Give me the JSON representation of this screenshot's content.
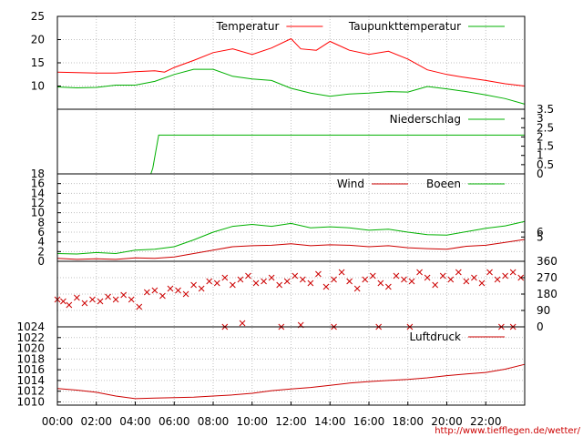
{
  "source_url": "http://www.tiefflegen.de/wetter/",
  "x_axis": {
    "ticks": [
      "00:00",
      "02:00",
      "04:00",
      "06:00",
      "08:00",
      "10:00",
      "12:00",
      "14:00",
      "16:00",
      "18:00",
      "20:00",
      "22:00"
    ],
    "range_hours": [
      0,
      24
    ]
  },
  "colors": {
    "red": "#ff0000",
    "dark_red": "#cc0000",
    "green": "#00b000",
    "grid": "#c0c0c0",
    "frame": "#000000"
  },
  "chart_data": [
    {
      "type": "line",
      "panel": "temperature",
      "x_unit": "hours",
      "ylim": [
        5,
        25
      ],
      "y_ticks": [
        "25",
        "20",
        "15",
        "10"
      ],
      "grid": true,
      "legend_placement": "top-right",
      "series": [
        {
          "name": "Temperatur",
          "color": "#ff0000",
          "points": [
            [
              0,
              13
            ],
            [
              1,
              12.9
            ],
            [
              2,
              12.8
            ],
            [
              3,
              12.8
            ],
            [
              4,
              13.1
            ],
            [
              5,
              13.3
            ],
            [
              5.5,
              13
            ],
            [
              6,
              14
            ],
            [
              7,
              15.5
            ],
            [
              8,
              17.2
            ],
            [
              9,
              18
            ],
            [
              10,
              16.8
            ],
            [
              11,
              18.2
            ],
            [
              12,
              20.2
            ],
            [
              12.5,
              18
            ],
            [
              13.3,
              17.7
            ],
            [
              14,
              19.6
            ],
            [
              15,
              17.7
            ],
            [
              16,
              16.8
            ],
            [
              17,
              17.5
            ],
            [
              18,
              15.8
            ],
            [
              19,
              13.5
            ],
            [
              20,
              12.5
            ],
            [
              21,
              11.8
            ],
            [
              22,
              11.2
            ],
            [
              23,
              10.5
            ],
            [
              24,
              10
            ]
          ]
        },
        {
          "name": "Taupunkttemperatur",
          "color": "#00b000",
          "points": [
            [
              0,
              9.8
            ],
            [
              1,
              9.6
            ],
            [
              2,
              9.7
            ],
            [
              3,
              10.2
            ],
            [
              4,
              10.2
            ],
            [
              5,
              11
            ],
            [
              6,
              12.5
            ],
            [
              7,
              13.6
            ],
            [
              8,
              13.6
            ],
            [
              9,
              12.1
            ],
            [
              10,
              11.5
            ],
            [
              11,
              11.2
            ],
            [
              12,
              9.5
            ],
            [
              13,
              8.5
            ],
            [
              14,
              7.8
            ],
            [
              15,
              8.3
            ],
            [
              16,
              8.5
            ],
            [
              17,
              8.8
            ],
            [
              18,
              8.7
            ],
            [
              19,
              9.9
            ],
            [
              20,
              9.4
            ],
            [
              21,
              8.8
            ],
            [
              22,
              8.1
            ],
            [
              23,
              7.3
            ],
            [
              24,
              6.1
            ]
          ]
        }
      ]
    },
    {
      "type": "line",
      "panel": "precipitation",
      "x_unit": "hours",
      "ylim": [
        0,
        3.5
      ],
      "y_ticks_right": [
        "3.5",
        "3",
        "2.5",
        "2",
        "1.5",
        "1",
        "0.5",
        "0"
      ],
      "grid": false,
      "legend_placement": "top-right",
      "series": [
        {
          "name": "Niederschlag",
          "color": "#00b000",
          "points": [
            [
              0,
              0
            ],
            [
              4.8,
              0
            ],
            [
              4.9,
              0.3
            ],
            [
              5.2,
              2.1
            ],
            [
              24,
              2.1
            ]
          ]
        }
      ]
    },
    {
      "type": "line",
      "panel": "wind",
      "x_unit": "hours",
      "ylim": [
        0,
        18
      ],
      "y_ticks": [
        "18",
        "16",
        "14",
        "12",
        "10",
        "8",
        "6",
        "4",
        "2",
        "0"
      ],
      "y_ticks_right": [
        "6",
        "5"
      ],
      "grid": true,
      "legend_placement": "top-right",
      "series": [
        {
          "name": "Wind",
          "color": "#cc0000",
          "points": [
            [
              0,
              0.6
            ],
            [
              1,
              0.4
            ],
            [
              2,
              0.5
            ],
            [
              3,
              0.4
            ],
            [
              4,
              0.7
            ],
            [
              5,
              0.6
            ],
            [
              6,
              0.9
            ],
            [
              7,
              1.6
            ],
            [
              8,
              2.3
            ],
            [
              9,
              3
            ],
            [
              10,
              3.2
            ],
            [
              11,
              3.3
            ],
            [
              12,
              3.6
            ],
            [
              13,
              3.2
            ],
            [
              14,
              3.4
            ],
            [
              15,
              3.3
            ],
            [
              16,
              3
            ],
            [
              17,
              3.2
            ],
            [
              18,
              2.8
            ],
            [
              19,
              2.6
            ],
            [
              20,
              2.5
            ],
            [
              21,
              3.1
            ],
            [
              22,
              3.3
            ],
            [
              23,
              3.9
            ],
            [
              24,
              4.5
            ]
          ]
        },
        {
          "name": "Boeen",
          "color": "#00b000",
          "points": [
            [
              0,
              1.6
            ],
            [
              1,
              1.5
            ],
            [
              2,
              1.8
            ],
            [
              3,
              1.6
            ],
            [
              4,
              2.3
            ],
            [
              5,
              2.5
            ],
            [
              6,
              3
            ],
            [
              7,
              4.4
            ],
            [
              8,
              6
            ],
            [
              9,
              7.2
            ],
            [
              10,
              7.6
            ],
            [
              11,
              7.2
            ],
            [
              12,
              7.8
            ],
            [
              13,
              6.9
            ],
            [
              14,
              7.1
            ],
            [
              15,
              6.9
            ],
            [
              16,
              6.4
            ],
            [
              17,
              6.6
            ],
            [
              18,
              6
            ],
            [
              19,
              5.5
            ],
            [
              20,
              5.4
            ],
            [
              21,
              6.1
            ],
            [
              22,
              6.8
            ],
            [
              23,
              7.3
            ],
            [
              24,
              8.2
            ]
          ]
        }
      ]
    },
    {
      "type": "scatter",
      "panel": "wind_direction",
      "x_unit": "hours",
      "ylim": [
        0,
        360
      ],
      "y_ticks_right": [
        "360",
        "270",
        "180",
        "90",
        "0"
      ],
      "grid": true,
      "series": [
        {
          "color": "#cc0000",
          "points": [
            [
              0,
              150
            ],
            [
              0.3,
              140
            ],
            [
              0.6,
              120
            ],
            [
              1,
              160
            ],
            [
              1.4,
              130
            ],
            [
              1.8,
              150
            ],
            [
              2.2,
              140
            ],
            [
              2.6,
              165
            ],
            [
              3,
              150
            ],
            [
              3.4,
              175
            ],
            [
              3.8,
              150
            ],
            [
              4.2,
              110
            ],
            [
              4.6,
              190
            ],
            [
              5,
              200
            ],
            [
              5.4,
              170
            ],
            [
              5.8,
              210
            ],
            [
              6.2,
              200
            ],
            [
              6.6,
              180
            ],
            [
              7,
              230
            ],
            [
              7.4,
              210
            ],
            [
              7.8,
              250
            ],
            [
              8.2,
              240
            ],
            [
              8.6,
              270
            ],
            [
              9,
              230
            ],
            [
              9.4,
              260
            ],
            [
              9.8,
              280
            ],
            [
              10.2,
              240
            ],
            [
              10.6,
              250
            ],
            [
              11,
              270
            ],
            [
              11.4,
              230
            ],
            [
              11.8,
              250
            ],
            [
              12.2,
              280
            ],
            [
              12.6,
              260
            ],
            [
              13,
              240
            ],
            [
              13.4,
              290
            ],
            [
              13.8,
              220
            ],
            [
              14.2,
              260
            ],
            [
              14.6,
              300
            ],
            [
              15,
              250
            ],
            [
              15.4,
              210
            ],
            [
              15.8,
              260
            ],
            [
              16.2,
              280
            ],
            [
              16.6,
              240
            ],
            [
              17,
              220
            ],
            [
              17.4,
              280
            ],
            [
              17.8,
              260
            ],
            [
              18.2,
              250
            ],
            [
              18.6,
              300
            ],
            [
              19,
              270
            ],
            [
              19.4,
              230
            ],
            [
              19.8,
              280
            ],
            [
              20.2,
              260
            ],
            [
              20.6,
              300
            ],
            [
              21,
              250
            ],
            [
              21.4,
              270
            ],
            [
              21.8,
              240
            ],
            [
              22.2,
              300
            ],
            [
              22.6,
              260
            ],
            [
              23,
              280
            ],
            [
              23.4,
              300
            ],
            [
              23.8,
              270
            ],
            [
              8.6,
              0
            ],
            [
              11.5,
              0
            ],
            [
              14.2,
              0
            ],
            [
              16.5,
              0
            ],
            [
              18.1,
              0
            ],
            [
              22.8,
              0
            ],
            [
              23.4,
              0
            ],
            [
              9.5,
              20
            ],
            [
              12.5,
              10
            ]
          ]
        }
      ]
    },
    {
      "type": "line",
      "panel": "pressure",
      "x_unit": "hours",
      "ylim": [
        1009.4,
        1024
      ],
      "y_ticks": [
        "1024",
        "1022",
        "1020",
        "1018",
        "1016",
        "1014",
        "1012",
        "1010"
      ],
      "grid": true,
      "legend_placement": "top-right",
      "series": [
        {
          "name": "Luftdruck",
          "color": "#cc0000",
          "points": [
            [
              0,
              1012.5
            ],
            [
              1,
              1012.2
            ],
            [
              2,
              1011.8
            ],
            [
              3,
              1011.1
            ],
            [
              4,
              1010.6
            ],
            [
              5,
              1010.7
            ],
            [
              6,
              1010.8
            ],
            [
              7,
              1010.9
            ],
            [
              8,
              1011.1
            ],
            [
              9,
              1011.3
            ],
            [
              10,
              1011.6
            ],
            [
              11,
              1012.1
            ],
            [
              12,
              1012.4
            ],
            [
              13,
              1012.7
            ],
            [
              14,
              1013.1
            ],
            [
              15,
              1013.5
            ],
            [
              16,
              1013.8
            ],
            [
              17,
              1014
            ],
            [
              18,
              1014.2
            ],
            [
              19,
              1014.5
            ],
            [
              20,
              1014.9
            ],
            [
              21,
              1015.2
            ],
            [
              22,
              1015.5
            ],
            [
              23,
              1016.1
            ],
            [
              24,
              1017
            ]
          ]
        }
      ]
    }
  ]
}
